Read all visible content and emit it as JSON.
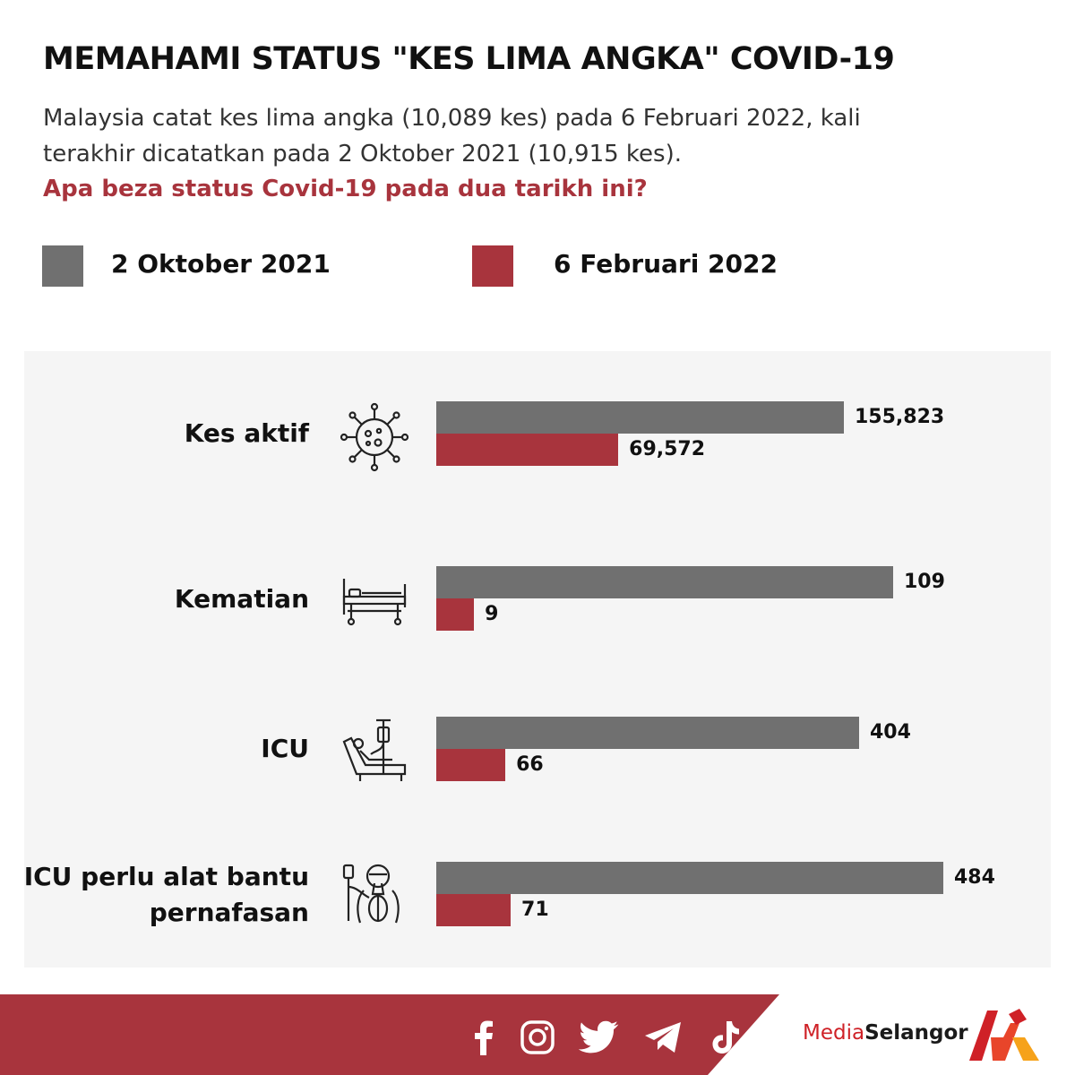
{
  "header": {
    "title": "MEMAHAMI STATUS \"KES LIMA ANGKA\" COVID-19",
    "subtitle": "Malaysia catat kes lima angka (10,089 kes) pada 6 Februari 2022, kali terakhir dicatatkan pada 2 Oktober 2021 (10,915 kes).",
    "question": "Apa beza status Covid-19 pada dua tarikh ini?"
  },
  "chart_data": {
    "type": "bar",
    "orientation": "horizontal",
    "categories": [
      "Kes aktif",
      "Kematian",
      "ICU",
      "ICU perlu alat bantu pernafasan"
    ],
    "category_icons": [
      "virus-icon",
      "hospital-bed-icon",
      "icu-patient-icon",
      "ventilator-patient-icon"
    ],
    "series": [
      {
        "name": "2 Oktober 2021",
        "color": "#707070",
        "values": [
          155823,
          109,
          404,
          484
        ],
        "labels": [
          "155,823",
          "109",
          "404",
          "484"
        ]
      },
      {
        "name": "6 Februari 2022",
        "color": "#a8343d",
        "values": [
          69572,
          9,
          66,
          71
        ],
        "labels": [
          "69,572",
          "9",
          "66",
          "71"
        ]
      }
    ],
    "legend_position": "top",
    "axis_visible": false,
    "grid": false
  },
  "footer": {
    "brand_media": "Media",
    "brand_selangor": "Selangor",
    "social_icons": [
      "facebook-icon",
      "instagram-icon",
      "twitter-icon",
      "telegram-icon",
      "tiktok-icon"
    ],
    "accent_color": "#a8343d"
  }
}
